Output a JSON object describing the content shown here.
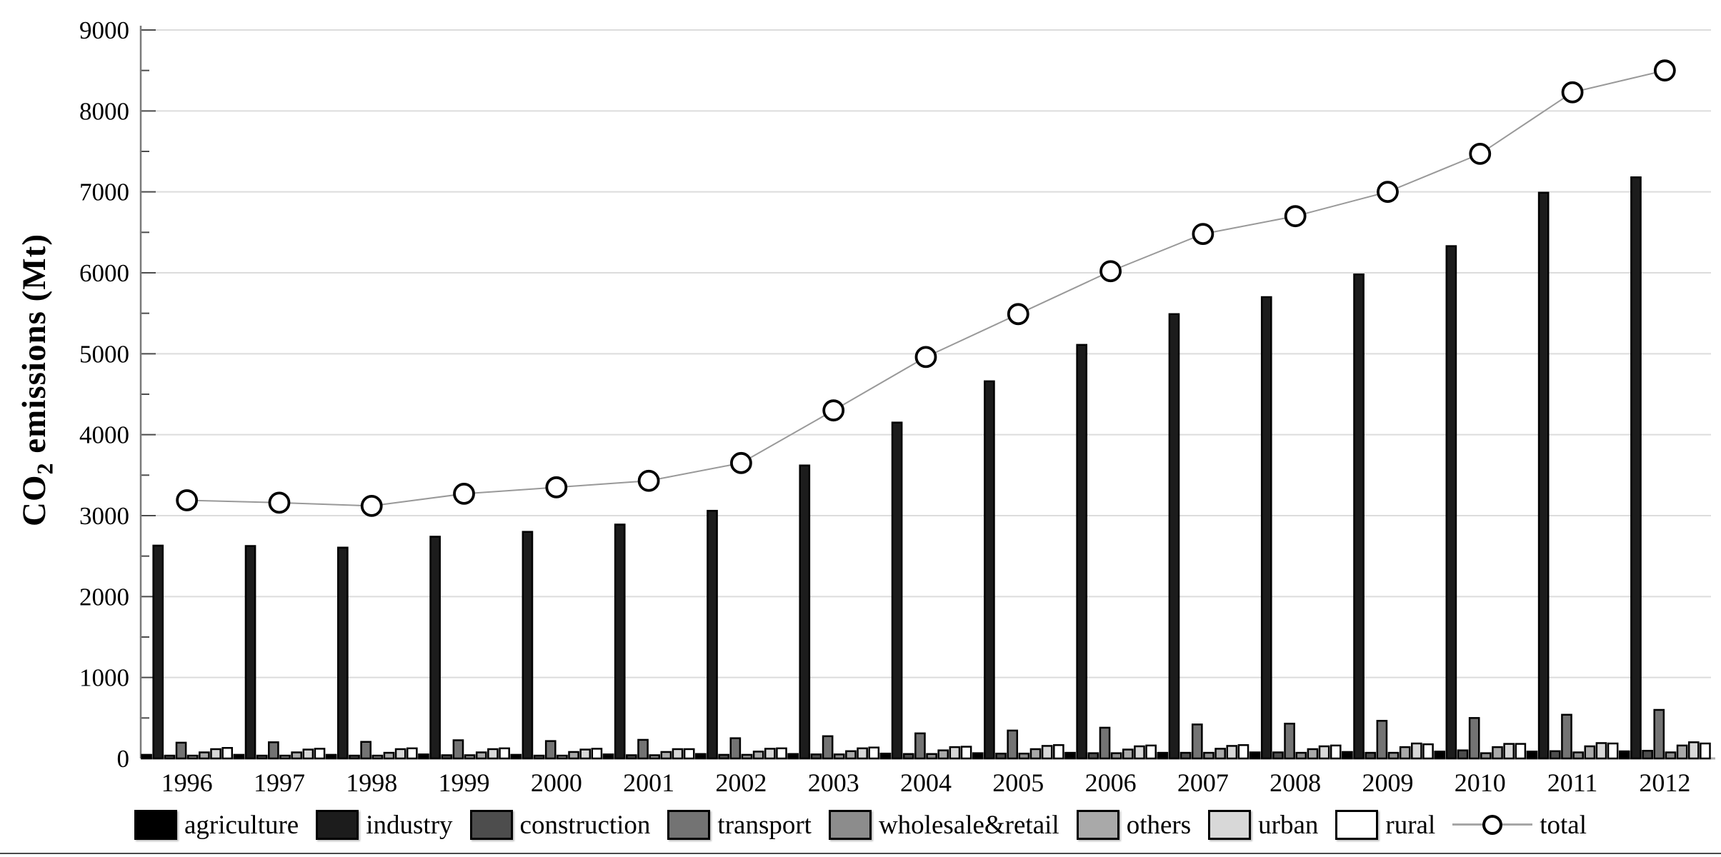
{
  "chart_data": {
    "type": "bar",
    "subtype": "grouped-bars-with-line-overlay",
    "title": "",
    "xlabel": "",
    "ylabel": "CO2 emissions (Mt)",
    "ylabel_parts": {
      "pre": "CO",
      "sub": "2",
      "post": " emissions (Mt)"
    },
    "categories": [
      "1996",
      "1997",
      "1998",
      "1999",
      "2000",
      "2001",
      "2002",
      "2003",
      "2004",
      "2005",
      "2006",
      "2007",
      "2008",
      "2009",
      "2010",
      "2011",
      "2012"
    ],
    "series": [
      {
        "name": "agriculture",
        "color": "#000000",
        "values": [
          45,
          45,
          45,
          50,
          45,
          50,
          55,
          55,
          60,
          65,
          70,
          70,
          75,
          80,
          85,
          85,
          88
        ]
      },
      {
        "name": "industry",
        "color": "#1c1c1c",
        "values": [
          2630,
          2625,
          2605,
          2740,
          2800,
          2890,
          3060,
          3620,
          4150,
          4660,
          5110,
          5490,
          5700,
          5980,
          6330,
          6990,
          7180
        ]
      },
      {
        "name": "construction",
        "color": "#4d4d4d",
        "values": [
          35,
          35,
          35,
          40,
          35,
          40,
          45,
          50,
          55,
          60,
          65,
          70,
          75,
          70,
          100,
          90,
          95
        ]
      },
      {
        "name": "transport",
        "color": "#737373",
        "values": [
          195,
          200,
          205,
          225,
          215,
          230,
          250,
          275,
          310,
          345,
          380,
          420,
          430,
          465,
          500,
          540,
          600
        ]
      },
      {
        "name": "wholesale&retail",
        "color": "#8c8c8c",
        "values": [
          35,
          35,
          35,
          40,
          35,
          40,
          45,
          50,
          55,
          60,
          65,
          70,
          70,
          70,
          65,
          75,
          75
        ]
      },
      {
        "name": "others",
        "color": "#a9a9a9",
        "values": [
          75,
          75,
          70,
          75,
          80,
          80,
          85,
          90,
          100,
          115,
          110,
          120,
          115,
          140,
          140,
          150,
          160
        ]
      },
      {
        "name": "urban",
        "color": "#d8d8d8",
        "values": [
          115,
          110,
          115,
          115,
          110,
          115,
          120,
          125,
          140,
          155,
          150,
          155,
          150,
          185,
          180,
          190,
          200
        ]
      },
      {
        "name": "rural",
        "color": "#ffffff",
        "values": [
          130,
          120,
          125,
          125,
          120,
          115,
          125,
          135,
          145,
          165,
          160,
          165,
          160,
          175,
          180,
          185,
          185
        ]
      }
    ],
    "line_series": [
      {
        "name": "total",
        "marker": "open-circle",
        "line_color": "#999999",
        "marker_fill": "#ffffff",
        "marker_stroke": "#000000",
        "values": [
          3190,
          3160,
          3120,
          3270,
          3350,
          3430,
          3650,
          4300,
          4960,
          5490,
          6020,
          6480,
          6700,
          7000,
          7470,
          8230,
          8500
        ]
      }
    ],
    "ylim": [
      0,
      9000
    ],
    "ytick_major": 1000,
    "ytick_minor": 500,
    "grid": "horizontal-major-light-gray",
    "legend_position": "bottom",
    "bar_outline_color": "#000000"
  },
  "axes": {
    "y_ticks": [
      "0",
      "1000",
      "2000",
      "3000",
      "4000",
      "5000",
      "6000",
      "7000",
      "8000",
      "9000"
    ]
  },
  "legend": {
    "items": [
      {
        "label": "agriculture",
        "type": "box",
        "color": "#000000"
      },
      {
        "label": "industry",
        "type": "box",
        "color": "#1c1c1c"
      },
      {
        "label": "construction",
        "type": "box",
        "color": "#4d4d4d"
      },
      {
        "label": "transport",
        "type": "box",
        "color": "#737373"
      },
      {
        "label": "wholesale&retail",
        "type": "box",
        "color": "#8c8c8c"
      },
      {
        "label": "others",
        "type": "box",
        "color": "#a9a9a9"
      },
      {
        "label": "urban",
        "type": "box",
        "color": "#d8d8d8"
      },
      {
        "label": "rural",
        "type": "box",
        "color": "#ffffff"
      },
      {
        "label": "total",
        "type": "line-marker",
        "line_color": "#a6a6a6",
        "marker_stroke": "#000000",
        "marker_fill": "#ffffff"
      }
    ]
  },
  "style": {
    "gridline_color": "#dcdcdc",
    "axis_line_color": "#7a7a7a",
    "x_axis_line_color": "#b0b0b0",
    "tick_color": "#4d4d4d"
  }
}
